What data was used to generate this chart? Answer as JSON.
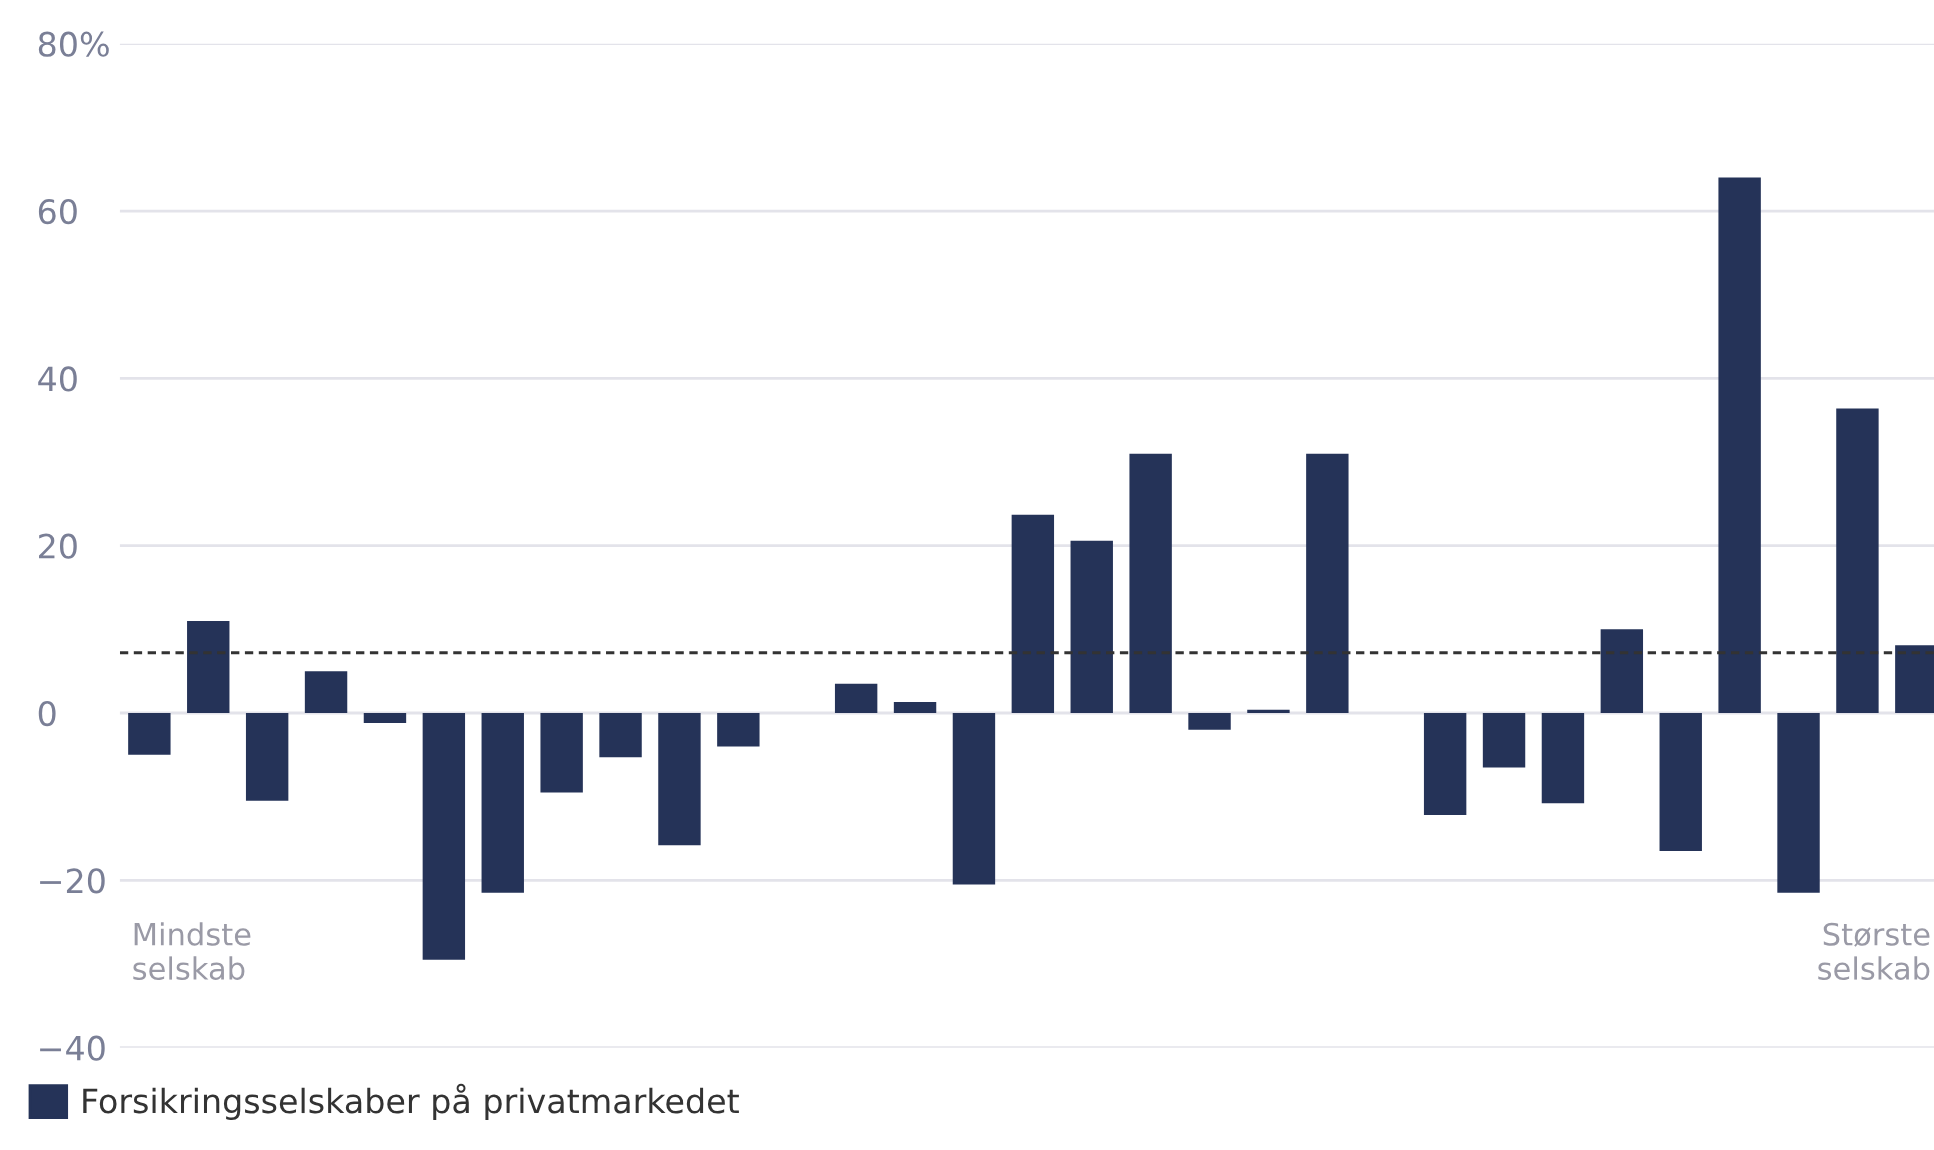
{
  "chart_data": {
    "type": "bar",
    "categories": [
      null,
      null,
      null,
      null,
      null,
      null,
      null,
      null,
      null,
      null,
      null,
      null,
      null,
      null,
      null,
      null,
      null,
      null,
      null,
      null,
      null,
      null,
      null,
      null,
      null,
      null,
      null,
      null,
      null,
      null,
      null
    ],
    "series": [
      {
        "name": "Forsikringsselskaber på privatmarkedet",
        "color": "#253358",
        "values": [
          -5,
          11,
          -10.5,
          5,
          -1.2,
          -29.5,
          -21.5,
          -9.5,
          -5.3,
          -15.8,
          -4,
          0,
          3.5,
          1.3,
          -20.5,
          23.7,
          20.6,
          31,
          -2,
          0.4,
          31,
          0,
          -12.2,
          -6.5,
          -10.8,
          10,
          -16.5,
          64,
          -21.5,
          36.4,
          8.1
        ]
      }
    ],
    "ylim": [
      -40,
      80
    ],
    "yticks": [
      {
        "value": -40,
        "label": "−40"
      },
      {
        "value": -20,
        "label": "−20"
      },
      0,
      20,
      40,
      60,
      {
        "value": 80,
        "label": "80%"
      }
    ],
    "grid": "y",
    "legend": "bottom",
    "ref_lines": [
      {
        "axis": "y",
        "value": 7.2,
        "color": "#333333",
        "line_style": "dashed"
      }
    ],
    "annotations": [
      "Mindste\nselskab",
      "Største\nselskab"
    ]
  }
}
